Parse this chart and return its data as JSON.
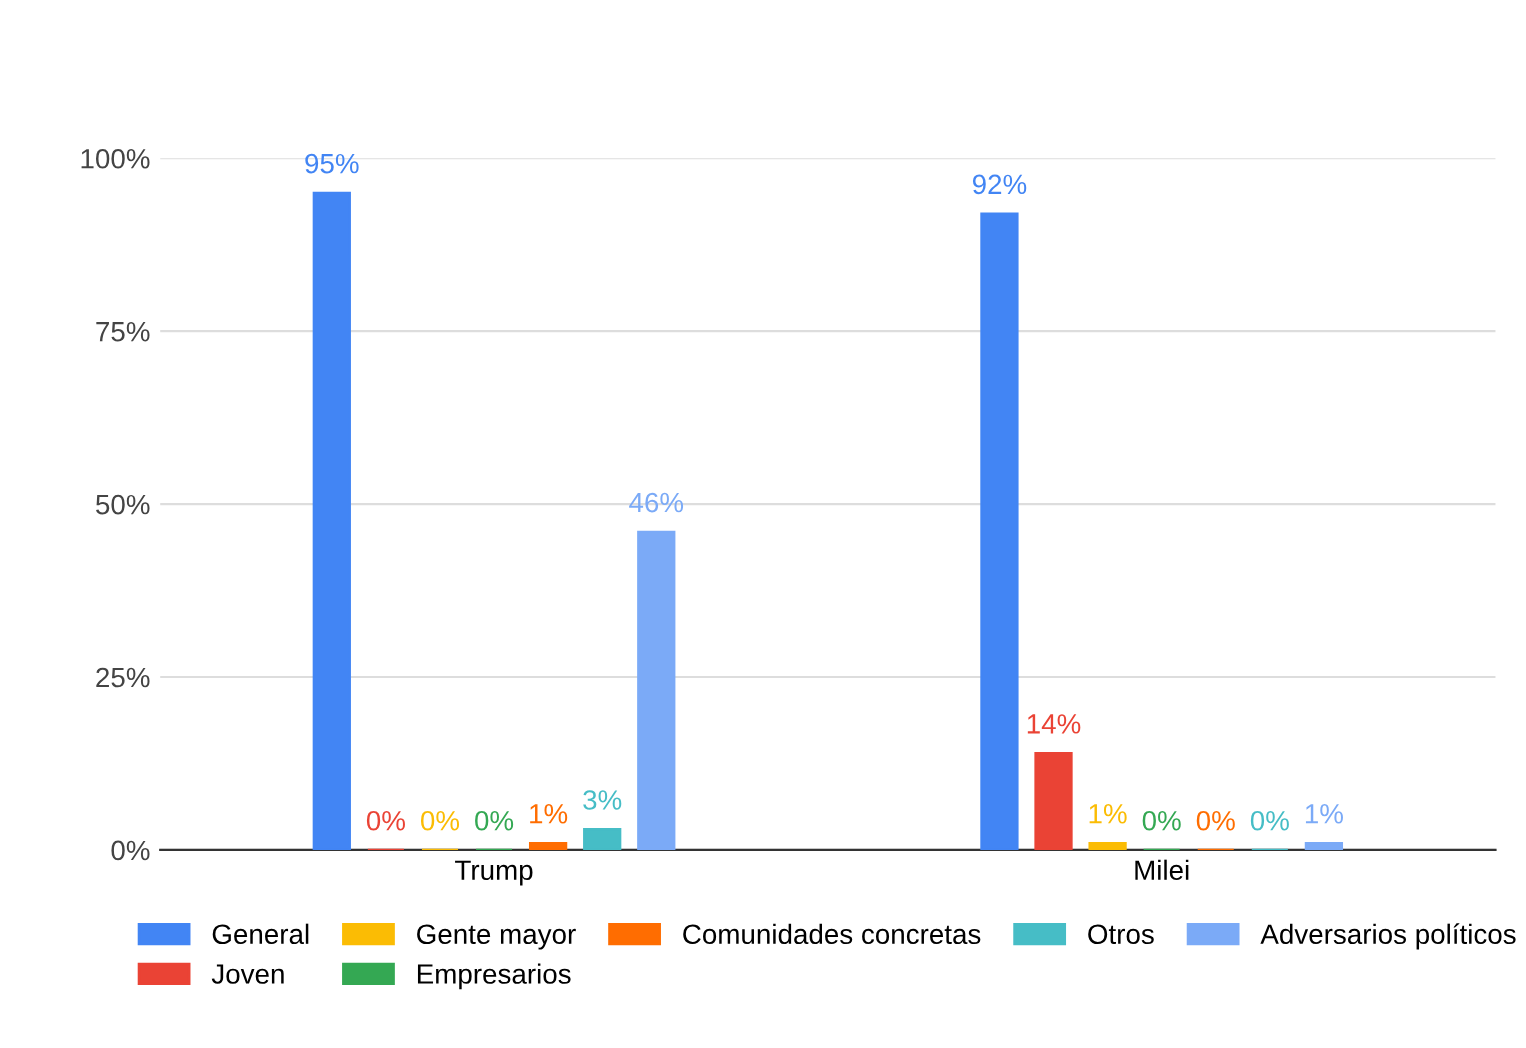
{
  "chart_data": {
    "type": "bar",
    "categories": [
      "Trump",
      "Milei"
    ],
    "series": [
      {
        "name": "General",
        "color": "#4285f4",
        "values": [
          95,
          92
        ],
        "value_labels": [
          "95%",
          "92%"
        ]
      },
      {
        "name": "Joven",
        "color": "#ea4335",
        "values": [
          0,
          14
        ],
        "value_labels": [
          "0%",
          "14%"
        ]
      },
      {
        "name": "Gente mayor",
        "color": "#fbbc04",
        "values": [
          0,
          1
        ],
        "value_labels": [
          "0%",
          "1%"
        ]
      },
      {
        "name": "Empresarios",
        "color": "#34a853",
        "values": [
          0,
          0
        ],
        "value_labels": [
          "0%",
          "0%"
        ]
      },
      {
        "name": "Comunidades concretas",
        "color": "#ff6d01",
        "values": [
          1,
          0
        ],
        "value_labels": [
          "1%",
          "0%"
        ]
      },
      {
        "name": "Otros",
        "color": "#46bdc6",
        "values": [
          3,
          0
        ],
        "value_labels": [
          "3%",
          "0%"
        ]
      },
      {
        "name": "Adversarios políticos",
        "color": "#7baaf7",
        "values": [
          46,
          1
        ],
        "value_labels": [
          "46%",
          "1%"
        ]
      }
    ],
    "ylim": [
      0,
      100
    ],
    "yticks": [
      {
        "value": 0,
        "label": "0%"
      },
      {
        "value": 25,
        "label": "25%"
      },
      {
        "value": 50,
        "label": "50%"
      },
      {
        "value": 75,
        "label": "75%"
      },
      {
        "value": 100,
        "label": "100%"
      }
    ],
    "grid": "y",
    "legend": "bottom"
  }
}
